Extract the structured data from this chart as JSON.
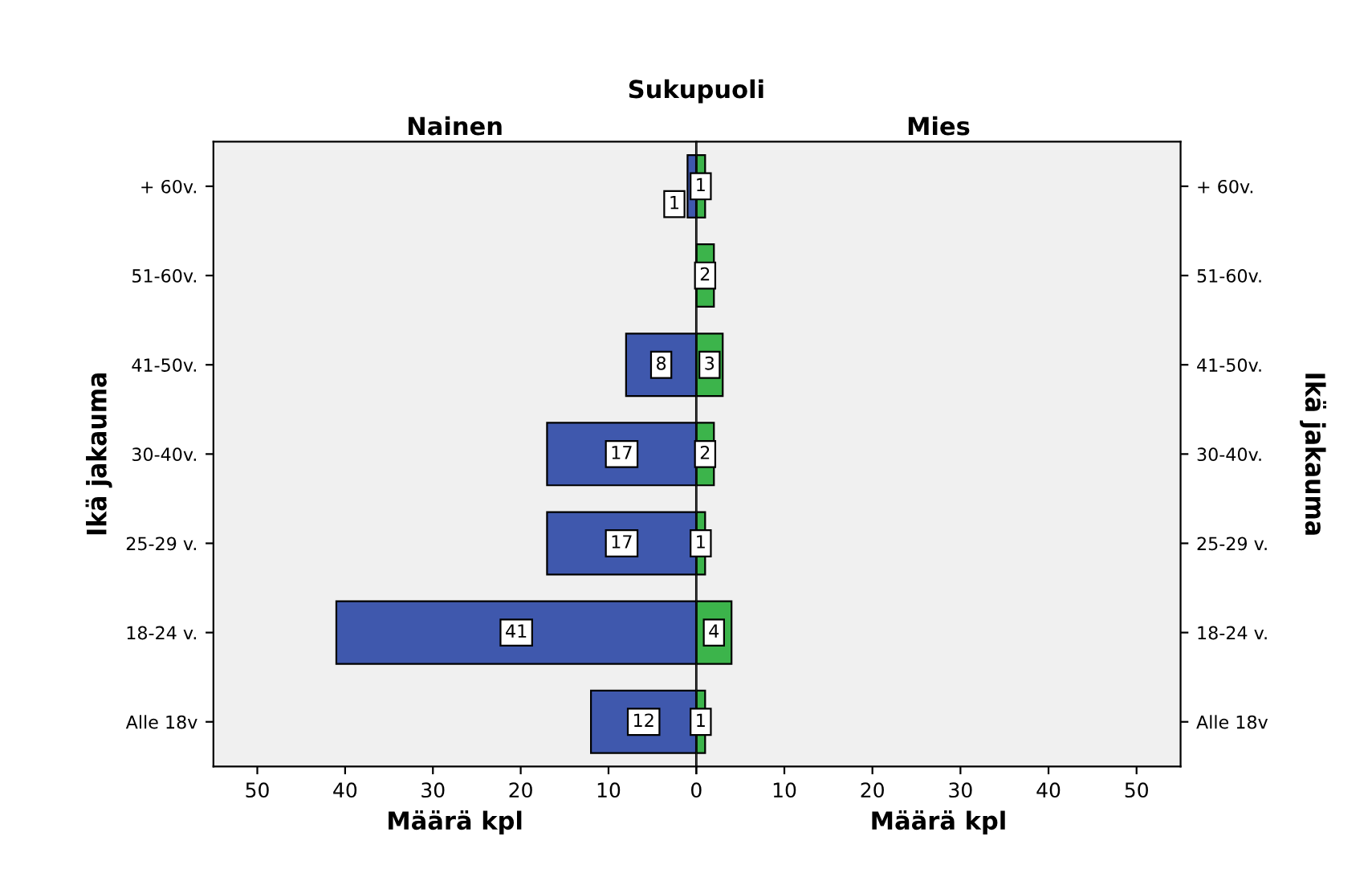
{
  "chart_data": [
    {
      "type": "bar",
      "orientation": "horizontal",
      "title": "Sukupuoli",
      "subtitle": "Nainen",
      "xlabel": "Määrä kpl",
      "ylabel": "Ikä jakauma",
      "categories": [
        "+ 60v.",
        "51-60v.",
        "41-50v.",
        "30-40v.",
        "25-29 v.",
        "18-24 v.",
        "Alle 18v"
      ],
      "values": [
        1,
        null,
        8,
        17,
        17,
        41,
        12
      ],
      "color": "#3f58ad",
      "xlim": [
        55,
        0
      ],
      "xticks": [
        50,
        40,
        30,
        20,
        10,
        0
      ],
      "data_labels": true,
      "grid": false
    },
    {
      "type": "bar",
      "orientation": "horizontal",
      "subtitle": "Mies",
      "xlabel": "Määrä kpl",
      "ylabel": "Ikä jakauma",
      "categories": [
        "+ 60v.",
        "51-60v.",
        "41-50v.",
        "30-40v.",
        "25-29 v.",
        "18-24 v.",
        "Alle 18v"
      ],
      "values": [
        1,
        2,
        3,
        2,
        1,
        4,
        1
      ],
      "color": "#3cb44b",
      "xlim": [
        0,
        55
      ],
      "xticks": [
        {
          "value": 0,
          "label": null
        },
        10,
        20,
        30,
        40,
        50
      ],
      "data_labels": true,
      "grid": false
    }
  ]
}
